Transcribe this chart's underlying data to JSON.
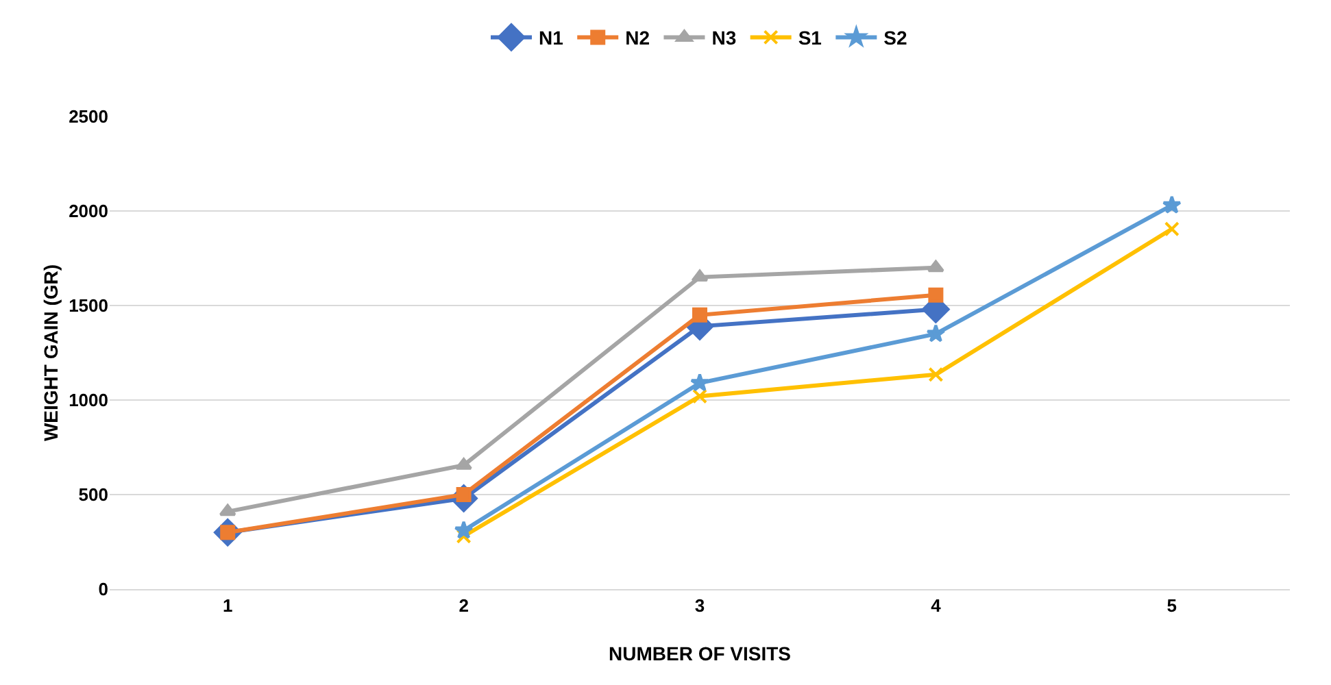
{
  "chart_data": {
    "type": "line",
    "xlabel": "NUMBER OF VISITS",
    "ylabel": "WEIGHT GAIN (GR)",
    "categories": [
      "1",
      "2",
      "3",
      "4",
      "5"
    ],
    "ylim": [
      0,
      2500
    ],
    "yticks": [
      0,
      500,
      1000,
      1500,
      2000,
      2500
    ],
    "grid": "y",
    "legend": "top",
    "line_style": "solid",
    "series": [
      {
        "name": "N1",
        "color": "#4472c4",
        "marker": "diamond",
        "values": [
          300,
          480,
          1390,
          1480,
          null
        ]
      },
      {
        "name": "N2",
        "color": "#ed7d31",
        "marker": "square",
        "values": [
          300,
          500,
          1450,
          1555,
          null
        ]
      },
      {
        "name": "N3",
        "color": "#a5a5a5",
        "marker": "triangle",
        "values": [
          410,
          655,
          1650,
          1700,
          null
        ]
      },
      {
        "name": "S1",
        "color": "#ffc000",
        "marker": "cross",
        "values": [
          null,
          280,
          1020,
          1135,
          1905
        ]
      },
      {
        "name": "S2",
        "color": "#5b9bd5",
        "marker": "star",
        "values": [
          null,
          310,
          1090,
          1350,
          2030
        ]
      }
    ]
  }
}
